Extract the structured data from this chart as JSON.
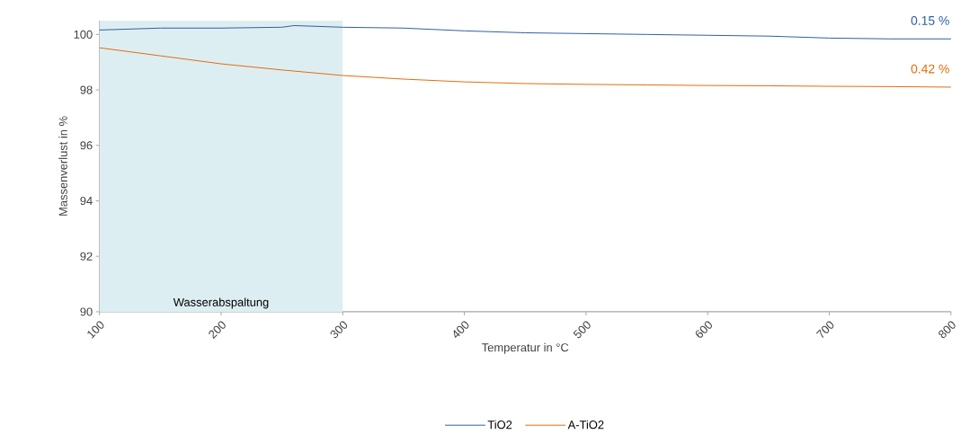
{
  "chart_data": {
    "type": "line",
    "xlabel": "Temperatur in °C",
    "ylabel": "Massenverlust in %",
    "x": [
      100,
      150,
      200,
      250,
      260,
      300,
      350,
      400,
      450,
      500,
      550,
      600,
      650,
      700,
      750,
      800
    ],
    "series": [
      {
        "name": "TiO2",
        "color": "#2e5fa3",
        "values": [
          100.16,
          100.23,
          100.23,
          100.26,
          100.32,
          100.26,
          100.23,
          100.13,
          100.06,
          100.03,
          100.0,
          99.97,
          99.94,
          99.87,
          99.84,
          99.84
        ]
      },
      {
        "name": "A-TiO2",
        "color": "#e36c0a",
        "values": [
          99.52,
          99.23,
          98.94,
          98.72,
          98.68,
          98.52,
          98.39,
          98.29,
          98.23,
          98.2,
          98.18,
          98.16,
          98.15,
          98.13,
          98.12,
          98.1
        ]
      }
    ],
    "xlim": [
      100,
      800
    ],
    "xticks": [
      100,
      200,
      300,
      400,
      500,
      600,
      700,
      800
    ],
    "ylim": [
      90,
      100.5
    ],
    "yticks": [
      90,
      92,
      94,
      96,
      98,
      100
    ],
    "bands": [
      {
        "axis": "x",
        "from": 100,
        "to": 300,
        "label": "Wasserabspaltung",
        "color": "#ddeef2"
      }
    ],
    "annotations": [
      {
        "text": "0.15 %",
        "x": 800,
        "y": 99.84
      },
      {
        "text": "0.42 %",
        "x": 800,
        "y": 98.1
      }
    ],
    "legend": "bottom",
    "grid": false,
    "marker": "none",
    "line_style": "solid"
  }
}
